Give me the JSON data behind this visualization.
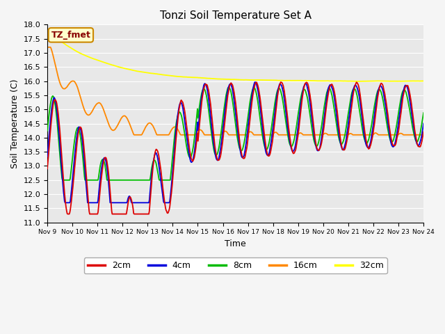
{
  "title": "Tonzi Soil Temperature Set A",
  "xlabel": "Time",
  "ylabel": "Soil Temperature (C)",
  "ylim": [
    11.0,
    18.0
  ],
  "yticks": [
    11.0,
    11.5,
    12.0,
    12.5,
    13.0,
    13.5,
    14.0,
    14.5,
    15.0,
    15.5,
    16.0,
    16.5,
    17.0,
    17.5,
    18.0
  ],
  "xtick_labels": [
    "Nov 9",
    "Nov 10",
    "Nov 11",
    "Nov 12",
    "Nov 13",
    "Nov 14",
    "Nov 15",
    "Nov 16",
    "Nov 17",
    "Nov 18",
    "Nov 19",
    "Nov 20",
    "Nov 21",
    "Nov 22",
    "Nov 23",
    "Nov 24"
  ],
  "line_colors": {
    "2cm": "#dd0000",
    "4cm": "#0000dd",
    "8cm": "#00bb00",
    "16cm": "#ff8800",
    "32cm": "#ffff00"
  },
  "legend_labels": [
    "2cm",
    "4cm",
    "8cm",
    "16cm",
    "32cm"
  ],
  "annotation_text": "TZ_fmet",
  "annotation_bg": "#ffffcc",
  "annotation_border": "#cc8800",
  "annotation_text_color": "#880000",
  "fig_bg_color": "#f5f5f5",
  "plot_bg_color": "#e8e8e8",
  "grid_color": "#ffffff",
  "n_points": 720
}
